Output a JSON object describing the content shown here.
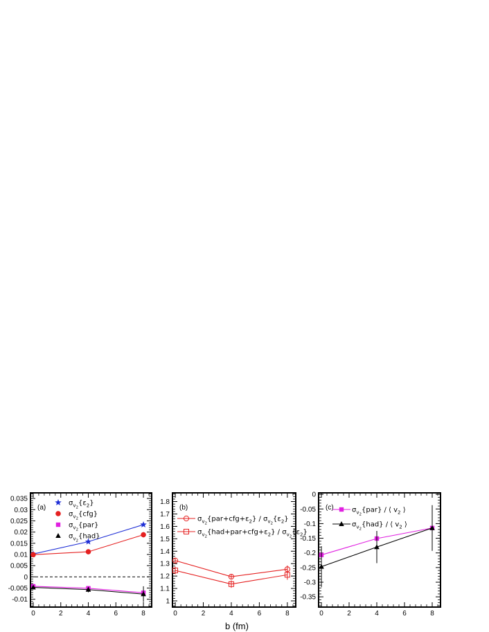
{
  "xlabel": "b (fm)",
  "chart_data": [
    {
      "type": "line",
      "panel_label": "(a)",
      "xlabel": "b (fm)",
      "xlim": [
        -0.2,
        8.6
      ],
      "ylim": [
        -0.0135,
        0.0375
      ],
      "x_ticks": [
        0,
        2,
        4,
        6,
        8
      ],
      "x_tick_labels": [
        "0",
        "2",
        "4",
        "6",
        "8"
      ],
      "y_ticks": [
        -0.01,
        -0.005,
        0,
        0.005,
        0.01,
        0.015,
        0.02,
        0.025,
        0.03,
        0.035
      ],
      "y_tick_labels": [
        "-0.01",
        "-0.005",
        "0",
        "0.005",
        "0.01",
        "0.015",
        "0.02",
        "0.025",
        "0.03",
        "0.035"
      ],
      "reference_line": {
        "y": 0,
        "style": "dashed"
      },
      "legend_position": "top-left",
      "series": [
        {
          "label": "σ_{v2}{ε2}",
          "color": "#1f2fd6",
          "marker": "star",
          "x": [
            0,
            4,
            8
          ],
          "y": [
            0.0102,
            0.0157,
            0.0233
          ],
          "yerr": [
            0.0003,
            0.0003,
            0.0003
          ]
        },
        {
          "label": "σ_{v2}{cfg}",
          "color": "#e52020",
          "marker": "circle",
          "x": [
            0,
            4,
            8
          ],
          "y": [
            0.0099,
            0.0112,
            0.0188
          ],
          "yerr": [
            0.0006,
            0.0007,
            0.0012
          ]
        },
        {
          "label": "σ_{v2}{par}",
          "color": "#e020e0",
          "marker": "square",
          "x": [
            0,
            4,
            8
          ],
          "y": [
            -0.0042,
            -0.0051,
            -0.0071
          ],
          "yerr": [
            0.0004,
            0.0005,
            0.0007
          ]
        },
        {
          "label": "σ_{v2}{had}",
          "color": "#000000",
          "marker": "triangle",
          "x": [
            0,
            4,
            8
          ],
          "y": [
            -0.0047,
            -0.0057,
            -0.0077
          ],
          "yerr": [
            0.0008,
            0.0012,
            0.0035
          ]
        }
      ]
    },
    {
      "type": "line",
      "panel_label": "(b)",
      "xlabel": "b (fm)",
      "xlim": [
        -0.2,
        8.6
      ],
      "ylim": [
        0.95,
        1.87
      ],
      "x_ticks": [
        0,
        2,
        4,
        6,
        8
      ],
      "x_tick_labels": [
        "0",
        "2",
        "4",
        "6",
        "8"
      ],
      "y_ticks": [
        1,
        1.1,
        1.2,
        1.3,
        1.4,
        1.5,
        1.6,
        1.7,
        1.8
      ],
      "y_tick_labels": [
        "1",
        "1.1",
        "1.2",
        "1.3",
        "1.4",
        "1.5",
        "1.6",
        "1.7",
        "1.8"
      ],
      "legend_position": "top-left",
      "series": [
        {
          "label": "σ_{v2}{par+cfg+ε2} / σ_{v2}{ε2}",
          "color": "#e52020",
          "marker": "open-circle",
          "x": [
            0,
            4,
            8
          ],
          "y": [
            1.325,
            1.195,
            1.255
          ],
          "yerr": [
            0.02,
            0.02,
            0.03
          ]
        },
        {
          "label": "σ_{v2}{had+par+cfg+ε2} / σ_{v2}{ε2}",
          "color": "#e52020",
          "marker": "open-square",
          "x": [
            0,
            4,
            8
          ],
          "y": [
            1.245,
            1.135,
            1.21
          ],
          "yerr": [
            0.03,
            0.03,
            0.04
          ]
        }
      ]
    },
    {
      "type": "line",
      "panel_label": "(c)",
      "xlabel": "b (fm)",
      "xlim": [
        -0.2,
        8.6
      ],
      "ylim": [
        -0.385,
        0.005
      ],
      "x_ticks": [
        0,
        2,
        4,
        6,
        8
      ],
      "x_tick_labels": [
        "0",
        "2",
        "4",
        "6",
        "8"
      ],
      "y_ticks": [
        0,
        -0.05,
        -0.1,
        -0.15,
        -0.2,
        -0.25,
        -0.3,
        -0.35
      ],
      "y_tick_labels": [
        "0",
        "-0.05",
        "-0.1",
        "-0.15",
        "-0.2",
        "-0.25",
        "-0.3",
        "-0.35"
      ],
      "legend_position": "top-left",
      "series": [
        {
          "label": "σ_{v2}{par} / ⟨ v2 ⟩",
          "color": "#e020e0",
          "marker": "square",
          "x": [
            0,
            4,
            8
          ],
          "y": [
            -0.207,
            -0.151,
            -0.115
          ],
          "yerr": [
            0.012,
            0.013,
            0.012
          ]
        },
        {
          "label": "σ_{v2}{had} / ⟨ v2 ⟩",
          "color": "#000000",
          "marker": "triangle",
          "x": [
            0,
            4,
            8
          ],
          "y": [
            -0.247,
            -0.18,
            -0.115
          ],
          "yerr": [
            0.07,
            0.055,
            0.078
          ]
        }
      ]
    }
  ],
  "legend_text": {
    "a": [
      {
        "main": "σ",
        "sub": "v",
        "sub2": "2",
        "rest": "{ε",
        "sub3": "2",
        "tail": "}"
      },
      {
        "main": "σ",
        "sub": "v",
        "sub2": "2",
        "rest": "{cfg}"
      },
      {
        "main": "σ",
        "sub": "v",
        "sub2": "2",
        "rest": "{par}"
      },
      {
        "main": "σ",
        "sub": "v",
        "sub2": "2",
        "rest": "{had}"
      }
    ],
    "b": [
      {
        "main": "σ",
        "sub": "v",
        "sub2": "2",
        "rest": "{par+cfg+ε",
        "sub3": "2",
        "mid": "} / σ",
        "sub4": "v",
        "sub5": "2",
        "rest2": "{ε",
        "sub6": "2",
        "tail": "}"
      },
      {
        "main": "σ",
        "sub": "v",
        "sub2": "2",
        "rest": "{had+par+cfg+ε",
        "sub3": "2",
        "mid": "} / σ",
        "sub4": "v",
        "sub5": "2",
        "rest2": "{ε",
        "sub6": "2",
        "tail": "}"
      }
    ],
    "c": [
      {
        "main": "σ",
        "sub": "v",
        "sub2": "2",
        "rest": "{par} / ⟨ v",
        "sub3": "2",
        "tail": " ⟩"
      },
      {
        "main": "σ",
        "sub": "v",
        "sub2": "2",
        "rest": "{had} / ⟨ v",
        "sub3": "2",
        "tail": " ⟩"
      }
    ]
  }
}
